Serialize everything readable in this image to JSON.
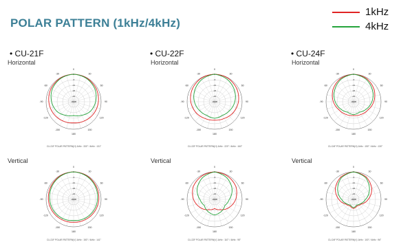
{
  "title": "POLAR PATTERN (1kHz/4kHz)",
  "legend": [
    {
      "label": "1kHz",
      "color": "#e02323"
    },
    {
      "label": "4kHz",
      "color": "#23a33a"
    }
  ],
  "orientation_labels": {
    "horizontal": "Horizontal",
    "vertical": "Vertical"
  },
  "models": [
    {
      "label": "• CU-21F"
    },
    {
      "label": "• CU-22F"
    },
    {
      "label": "• CU-24F"
    }
  ],
  "captions": [
    "CU-21F POLAR PATTERN(H) 1kHz : 330° / 4kHz : 131°",
    "CU-21F POLAR PATTERN(V) 1kHz : 150° / 4kHz : 141°",
    "CU-22F POLAR PATTERN(H) 1kHz : 220° / 4kHz : 160°",
    "CU-22F POLAR PATTERN(V) 1kHz : 110° / 4kHz : 95°",
    "CU-24F POLAR PATTERN(H) 1kHz : 150° / 4kHz : 130°",
    "CU-24F POLAR PATTERN(V) 1kHz : 100° / 4kHz : 96°"
  ],
  "chart_data": {
    "type": "polar",
    "angle_ticks": [
      "0",
      "30",
      "60",
      "90",
      "120",
      "150",
      "180",
      "-150",
      "-120",
      "-90",
      "-60",
      "-30"
    ],
    "radial_ticks": [
      "0",
      "-6",
      "-12",
      "-18",
      "-24",
      "-30dB"
    ],
    "rlim": [
      -30,
      0
    ],
    "plots": [
      {
        "model": "CU-21F",
        "orientation": "Horizontal",
        "series": [
          {
            "name": "1kHz",
            "values": [
              0,
              -0.5,
              -1.5,
              -3,
              -4.5,
              -6,
              -7,
              -6,
              -4.5,
              -3,
              -1.5,
              -0.5
            ]
          },
          {
            "name": "4kHz",
            "values": [
              0,
              -1,
              -3,
              -6,
              -9,
              -13,
              -15,
              -13,
              -9,
              -6,
              -3,
              -1
            ]
          }
        ]
      },
      {
        "model": "CU-22F",
        "orientation": "Horizontal",
        "series": [
          {
            "name": "1kHz",
            "values": [
              0,
              -0.5,
              -2,
              -4,
              -6.5,
              -9,
              -10,
              -9,
              -6.5,
              -4,
              -2,
              -0.5
            ]
          },
          {
            "name": "4kHz",
            "values": [
              0,
              -2,
              -5,
              -8,
              -11,
              -13,
              -12,
              -13,
              -11,
              -8,
              -5,
              -2
            ]
          }
        ]
      },
      {
        "model": "CU-24F",
        "orientation": "Horizontal",
        "series": [
          {
            "name": "1kHz",
            "values": [
              0,
              -1,
              -4,
              -8,
              -12,
              -14,
              -15,
              -14,
              -12,
              -8,
              -4,
              -1
            ]
          },
          {
            "name": "4kHz",
            "values": [
              0,
              -2,
              -6,
              -10,
              -14,
              -17,
              -16,
              -17,
              -14,
              -10,
              -6,
              -2
            ]
          }
        ]
      },
      {
        "model": "CU-21F",
        "orientation": "Vertical",
        "series": [
          {
            "name": "1kHz",
            "values": [
              0,
              -0.5,
              -1.5,
              -2.5,
              -3.5,
              -4.5,
              -5,
              -4.5,
              -3.5,
              -2.5,
              -1.5,
              -0.5
            ]
          },
          {
            "name": "4kHz",
            "values": [
              0,
              -1,
              -2.5,
              -4,
              -5,
              -6,
              -7,
              -6,
              -5,
              -4,
              -2.5,
              -1
            ]
          }
        ]
      },
      {
        "model": "CU-22F",
        "orientation": "Vertical",
        "series": [
          {
            "name": "1kHz",
            "values": [
              0,
              -1,
              -3,
              -7,
              -12,
              -17,
              -20,
              -17,
              -12,
              -7,
              -3,
              -1
            ]
          },
          {
            "name": "4kHz",
            "values": [
              0,
              -3,
              -8,
              -14,
              -17,
              -15,
              -13,
              -15,
              -17,
              -14,
              -8,
              -3
            ]
          }
        ]
      },
      {
        "model": "CU-24F",
        "orientation": "Vertical",
        "series": [
          {
            "name": "1kHz",
            "values": [
              0,
              -2,
              -7,
              -14,
              -20,
              -22,
              -20,
              -22,
              -20,
              -14,
              -7,
              -2
            ]
          },
          {
            "name": "4kHz",
            "values": [
              0,
              -3,
              -10,
              -17,
              -21,
              -23,
              -21,
              -23,
              -21,
              -17,
              -10,
              -3
            ]
          }
        ]
      }
    ]
  }
}
